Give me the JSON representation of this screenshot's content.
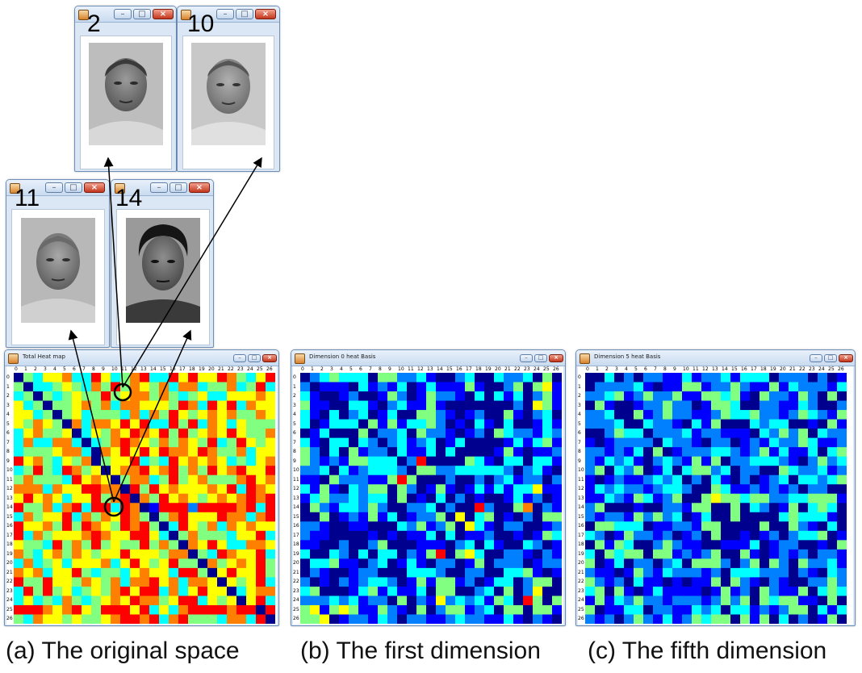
{
  "small_windows": [
    {
      "id": "face-2",
      "label": "2"
    },
    {
      "id": "face-10",
      "label": "10"
    },
    {
      "id": "face-11",
      "label": "11"
    },
    {
      "id": "face-14",
      "label": "14"
    }
  ],
  "heatmap_windows": [
    {
      "id": "total",
      "title": "Total Heat map",
      "caption": "(a) The original space"
    },
    {
      "id": "dim0",
      "title": "Dimension 0 heat Basis",
      "caption": "(b) The first dimension"
    },
    {
      "id": "dim5",
      "title": "Dimension 5 heat Basis",
      "caption": "(c) The fifth dimension"
    }
  ],
  "axis_labels": [
    "0",
    "1",
    "2",
    "3",
    "4",
    "5",
    "6",
    "7",
    "8",
    "9",
    "10",
    "11",
    "12",
    "13",
    "14",
    "15",
    "16",
    "17",
    "18",
    "19",
    "20",
    "21",
    "22",
    "23",
    "24",
    "25",
    "26"
  ],
  "window_controls": {
    "minimize": "–",
    "maximize": "□",
    "close": "×"
  },
  "colormap": [
    "#00008f",
    "#0000ff",
    "#0080ff",
    "#00ffff",
    "#80ff80",
    "#ffff00",
    "#ff8000",
    "#ff0000",
    "#800000"
  ],
  "heatmaps": {
    "total": [
      "043556337534673375755764357",
      "403345436474654636634463473",
      "340434544745664643453355565",
      "534044564636655547637573655",
      "553404534443636475456564465",
      "546540636657573374736535444",
      "356445035465765747456575446",
      "363366303467654646547347545",
      "344456630657575766576446355",
      "756435460455734375656534356",
      "347437645056675674647567557",
      "464443756504663474564446756",
      "666365577660747565556573765",
      "575653557467064756545656767",
      "744636737737601777277776737",
      "364557364657640467555766367",
      "755647476547674037546365655",
      "736455567655775304644435573",
      "544374647454474640657533665",
      "643564654557555466043765573",
      "363453555635754574406456574",
      "656355743443565537740575574",
      "744755465463667563665054573",
      "374745345467577363575503566",
      "353436434565766457735450573",
      "777656754777573536777767707",
      "436554544567767367444366370"
    ],
    "dim0": [
      "023433304422310023003223040",
      "201110312130131114100240451",
      "310012001420142210303130241",
      "411003310231141000000020541",
      "310302301300442101200410230",
      "301333041413342010310300131",
      "013000402230422101204322132",
      "310330320231230130000131341",
      "420304122031130300001410112",
      "421214433302700004310330331",
      "223031233320442233333202310",
      "110422211474000200202312202",
      "314103244042014101313133511",
      "134223233040103020100131201",
      "042133242002230200720046021",
      "004012141301224050340102044",
      "221001100032412405310220012",
      "211000010101130301120010143",
      "110020024000111023031003201",
      "300320303302147045300221021",
      "033411023013102201402220122",
      "021001220003332002200334101",
      "201021233201414412013302440",
      "340001341311304400230402500",
      "222323122040215232314307404",
      "451454114210402441230440441",
      "445012213202211232211310210"
    ],
    "dim5": [
      "003020221131223133302220201",
      "022223101144122421141322213",
      "223412422411443410422142040",
      "041001224220144300221132002",
      "223004124221124334221243214",
      "222300322103140003233001041",
      "002433022231221110324240322",
      "101222203221022012132243112",
      "221213040122233212413113034",
      "213231023214140223332102423",
      "240324013034423022004322312",
      "101211232302031020123033234",
      "132322123320043112121202200",
      "113214312400454434422334441",
      "240001002214400403201403430",
      "212214242301300400003433310",
      "044333011221440000400421030",
      "320142212012040010120233401",
      "041430024211001113012200104",
      "304344044121240041012120221",
      "401302202304442024042042231",
      "211014213222120333222021032",
      "421203110101140421021002242",
      "340410131111014120421140343",
      "141324221222124240434411040",
      "401133022113230331212440313",
      "212024213124344041403020140"
    ]
  }
}
